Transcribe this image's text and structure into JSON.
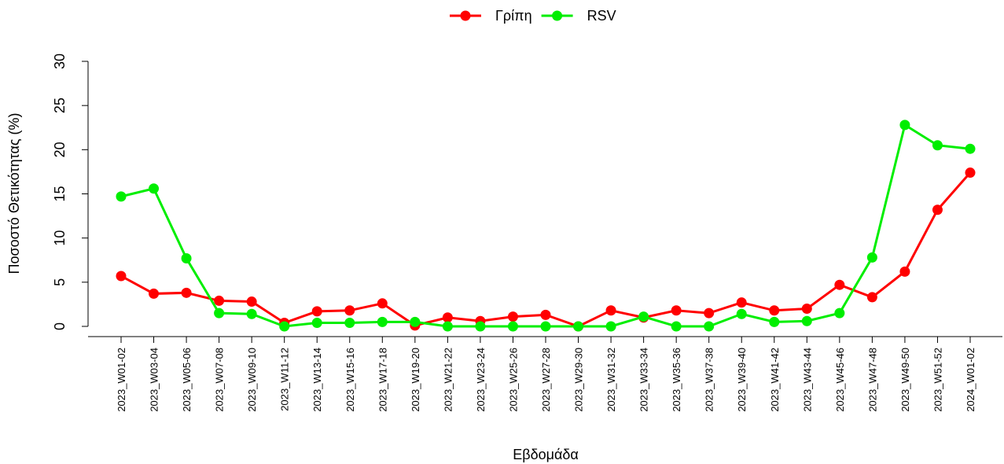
{
  "chart_data": {
    "type": "line",
    "x_label": "Εβδομάδα",
    "y_label": "Ποσοστό Θετικότητας (%)",
    "categories": [
      "2023_W01-02",
      "2023_W03-04",
      "2023_W05-06",
      "2023_W07-08",
      "2023_W09-10",
      "2023_W11-12",
      "2023_W13-14",
      "2023_W15-16",
      "2023_W17-18",
      "2023_W19-20",
      "2023_W21-22",
      "2023_W23-24",
      "2023_W25-26",
      "2023_W27-28",
      "2023_W29-30",
      "2023_W31-32",
      "2023_W33-34",
      "2023_W35-36",
      "2023_W37-38",
      "2023_W39-40",
      "2023_W41-42",
      "2023_W43-44",
      "2023_W45-46",
      "2023_W47-48",
      "2023_W49-50",
      "2023_W51-52",
      "2024_W01-02"
    ],
    "series": [
      {
        "name": "Γρίπη",
        "color": "#ff0000",
        "values": [
          5.7,
          3.7,
          3.8,
          2.9,
          2.8,
          0.4,
          1.7,
          1.8,
          2.6,
          0.1,
          1.0,
          0.6,
          1.1,
          1.3,
          0.0,
          1.8,
          1.0,
          1.8,
          1.5,
          2.7,
          1.8,
          2.0,
          4.7,
          3.3,
          6.2,
          13.2,
          17.4
        ]
      },
      {
        "name": "RSV",
        "color": "#00ee00",
        "values": [
          14.7,
          15.6,
          7.7,
          1.5,
          1.4,
          0.0,
          0.4,
          0.4,
          0.5,
          0.5,
          0.0,
          0.0,
          0.0,
          0.0,
          0.0,
          0.0,
          1.1,
          0.0,
          0.0,
          1.4,
          0.5,
          0.6,
          1.5,
          7.8,
          22.8,
          20.5,
          20.1
        ]
      }
    ],
    "ylim": [
      0,
      30
    ],
    "yticks": [
      0,
      5,
      10,
      15,
      20,
      25,
      30
    ],
    "legend": "top"
  }
}
